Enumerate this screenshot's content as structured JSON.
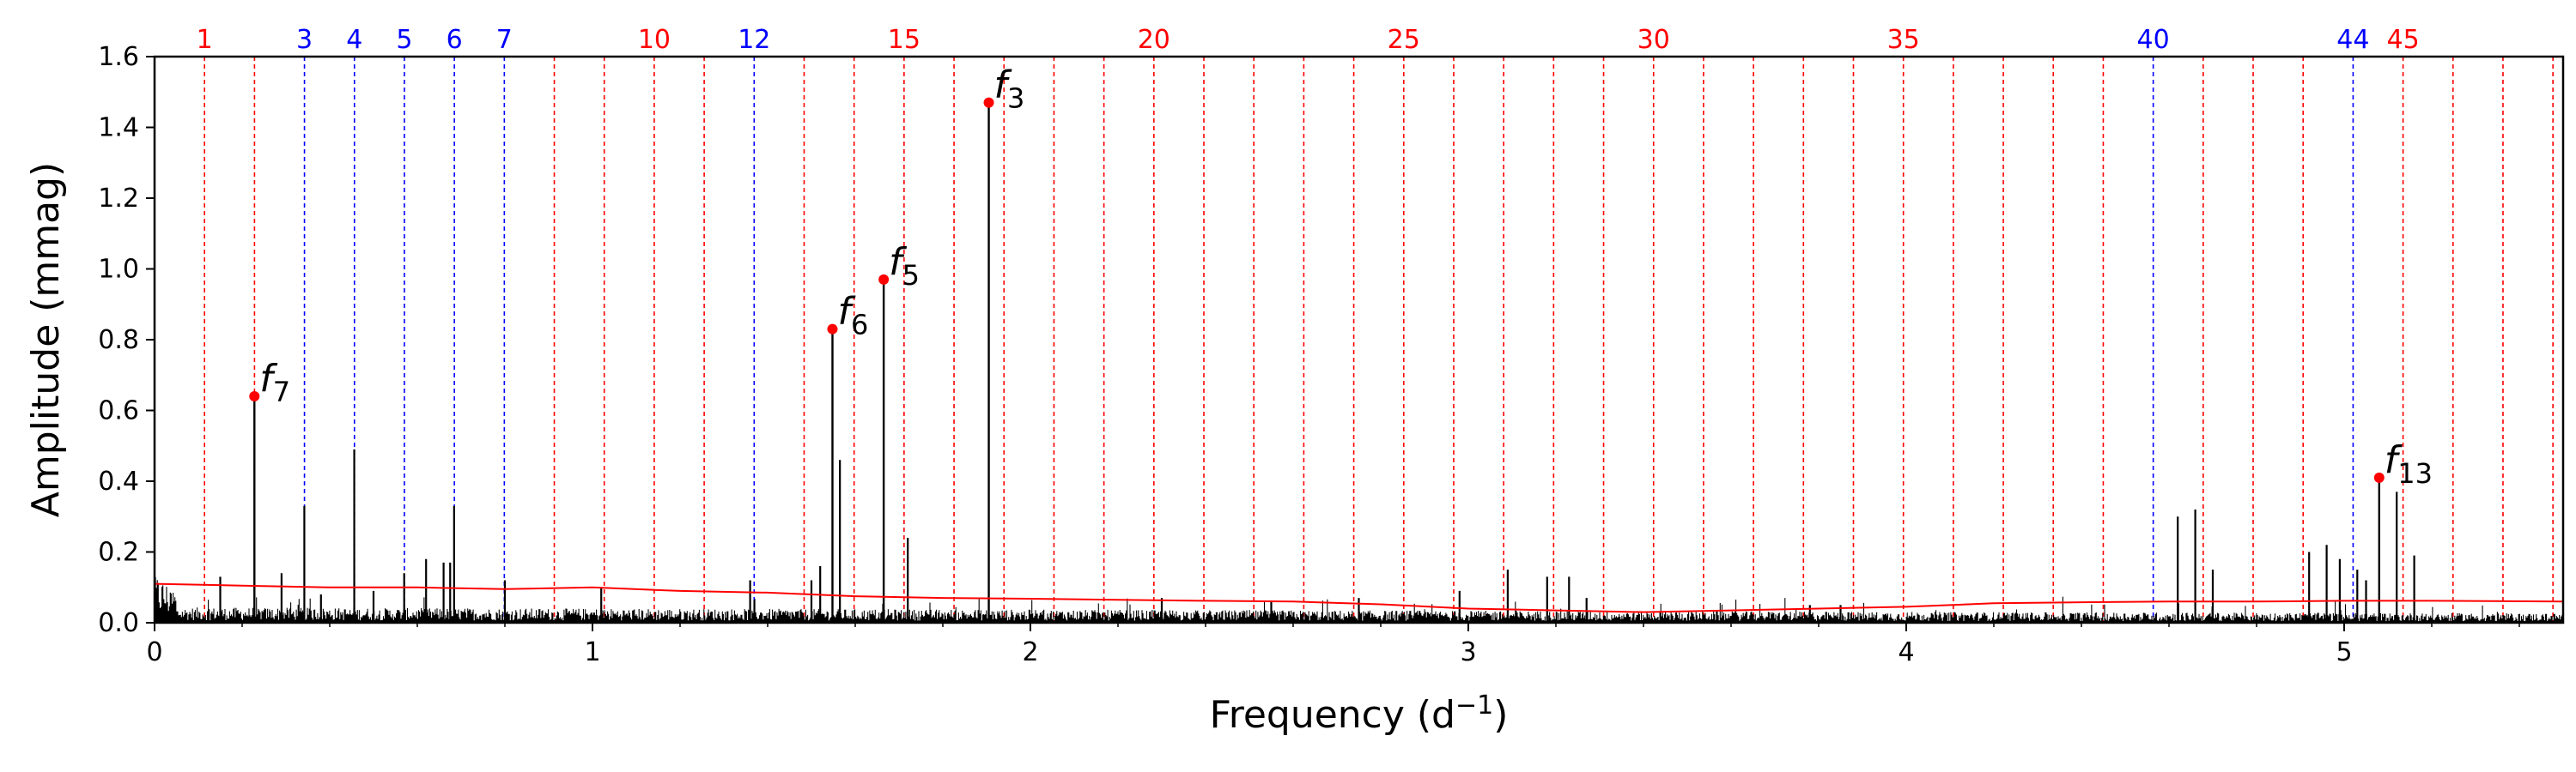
{
  "chart_data": {
    "type": "line",
    "title": "",
    "xlabel": "Frequency  (d",
    "xlabel_sup": "−1",
    "xlabel_tail": ")",
    "ylabel": "Amplitude (mmag)",
    "xlim": [
      0,
      5.5
    ],
    "ylim": [
      0,
      1.6
    ],
    "x_ticks": [
      "0",
      "1",
      "2",
      "3",
      "4",
      "5"
    ],
    "y_ticks": [
      "0.0",
      "0.2",
      "0.4",
      "0.6",
      "0.8",
      "1.0",
      "1.2",
      "1.4",
      "1.6"
    ],
    "grid": false,
    "harmonic_spacing": 0.1141,
    "harmonic_count": 48,
    "harmonic_labels": [
      {
        "n": 1,
        "text": "1",
        "color": "#ff0000"
      },
      {
        "n": 3,
        "text": "3",
        "color": "#0000ff"
      },
      {
        "n": 4,
        "text": "4",
        "color": "#0000ff"
      },
      {
        "n": 5,
        "text": "5",
        "color": "#0000ff"
      },
      {
        "n": 6,
        "text": "6",
        "color": "#0000ff"
      },
      {
        "n": 7,
        "text": "7",
        "color": "#0000ff"
      },
      {
        "n": 10,
        "text": "10",
        "color": "#ff0000"
      },
      {
        "n": 12,
        "text": "12",
        "color": "#0000ff"
      },
      {
        "n": 15,
        "text": "15",
        "color": "#ff0000"
      },
      {
        "n": 20,
        "text": "20",
        "color": "#ff0000"
      },
      {
        "n": 25,
        "text": "25",
        "color": "#ff0000"
      },
      {
        "n": 30,
        "text": "30",
        "color": "#ff0000"
      },
      {
        "n": 35,
        "text": "35",
        "color": "#ff0000"
      },
      {
        "n": 40,
        "text": "40",
        "color": "#0000ff"
      },
      {
        "n": 44,
        "text": "44",
        "color": "#0000ff"
      },
      {
        "n": 45,
        "text": "45",
        "color": "#ff0000"
      }
    ],
    "blue_harmonics": [
      3,
      4,
      5,
      6,
      7,
      12,
      40,
      44
    ],
    "labeled_peaks": [
      {
        "name": "f",
        "sub": "7",
        "x": 0.228,
        "y": 0.64
      },
      {
        "name": "f",
        "sub": "6",
        "x": 1.548,
        "y": 0.83
      },
      {
        "name": "f",
        "sub": "5",
        "x": 1.665,
        "y": 0.97
      },
      {
        "name": "f",
        "sub": "3",
        "x": 1.905,
        "y": 1.47
      },
      {
        "name": "f",
        "sub": "13",
        "x": 5.08,
        "y": 0.41
      }
    ],
    "other_peaks": [
      {
        "x": 0.342,
        "y": 0.33
      },
      {
        "x": 0.456,
        "y": 0.49
      },
      {
        "x": 0.57,
        "y": 0.14
      },
      {
        "x": 0.684,
        "y": 0.33
      },
      {
        "x": 0.5,
        "y": 0.09
      },
      {
        "x": 0.62,
        "y": 0.18
      },
      {
        "x": 0.66,
        "y": 0.17
      },
      {
        "x": 0.675,
        "y": 0.17
      },
      {
        "x": 0.8,
        "y": 0.12
      },
      {
        "x": 0.15,
        "y": 0.13
      },
      {
        "x": 0.29,
        "y": 0.14
      },
      {
        "x": 0.38,
        "y": 0.08
      },
      {
        "x": 1.02,
        "y": 0.1
      },
      {
        "x": 1.36,
        "y": 0.12
      },
      {
        "x": 1.5,
        "y": 0.12
      },
      {
        "x": 1.52,
        "y": 0.16
      },
      {
        "x": 1.565,
        "y": 0.46
      },
      {
        "x": 1.72,
        "y": 0.24
      },
      {
        "x": 2.3,
        "y": 0.07
      },
      {
        "x": 2.55,
        "y": 0.06
      },
      {
        "x": 2.75,
        "y": 0.07
      },
      {
        "x": 2.98,
        "y": 0.09
      },
      {
        "x": 3.09,
        "y": 0.15
      },
      {
        "x": 3.18,
        "y": 0.13
      },
      {
        "x": 3.23,
        "y": 0.13
      },
      {
        "x": 3.27,
        "y": 0.07
      },
      {
        "x": 3.78,
        "y": 0.05
      },
      {
        "x": 3.85,
        "y": 0.05
      },
      {
        "x": 4.62,
        "y": 0.3
      },
      {
        "x": 4.66,
        "y": 0.32
      },
      {
        "x": 4.7,
        "y": 0.15
      },
      {
        "x": 4.92,
        "y": 0.2
      },
      {
        "x": 4.96,
        "y": 0.22
      },
      {
        "x": 4.99,
        "y": 0.18
      },
      {
        "x": 5.03,
        "y": 0.15
      },
      {
        "x": 5.05,
        "y": 0.12
      },
      {
        "x": 5.12,
        "y": 0.37
      },
      {
        "x": 5.16,
        "y": 0.19
      }
    ],
    "significance_curve": {
      "color": "#ff0000",
      "x": [
        0.0,
        0.2,
        0.4,
        0.6,
        0.8,
        1.0,
        1.2,
        1.4,
        1.6,
        1.8,
        2.0,
        2.2,
        2.4,
        2.6,
        2.8,
        3.0,
        3.2,
        3.4,
        3.6,
        3.8,
        4.0,
        4.2,
        4.4,
        4.6,
        4.8,
        5.0,
        5.2,
        5.5
      ],
      "y": [
        0.11,
        0.105,
        0.1,
        0.1,
        0.095,
        0.1,
        0.09,
        0.085,
        0.075,
        0.07,
        0.068,
        0.065,
        0.062,
        0.06,
        0.052,
        0.04,
        0.035,
        0.03,
        0.035,
        0.04,
        0.045,
        0.055,
        0.058,
        0.06,
        0.06,
        0.062,
        0.062,
        0.06
      ]
    },
    "colors": {
      "spectrum": "#000000",
      "peak_marker": "#ff0000",
      "harmonic_red": "#ff0000",
      "harmonic_blue": "#0000ff"
    }
  }
}
